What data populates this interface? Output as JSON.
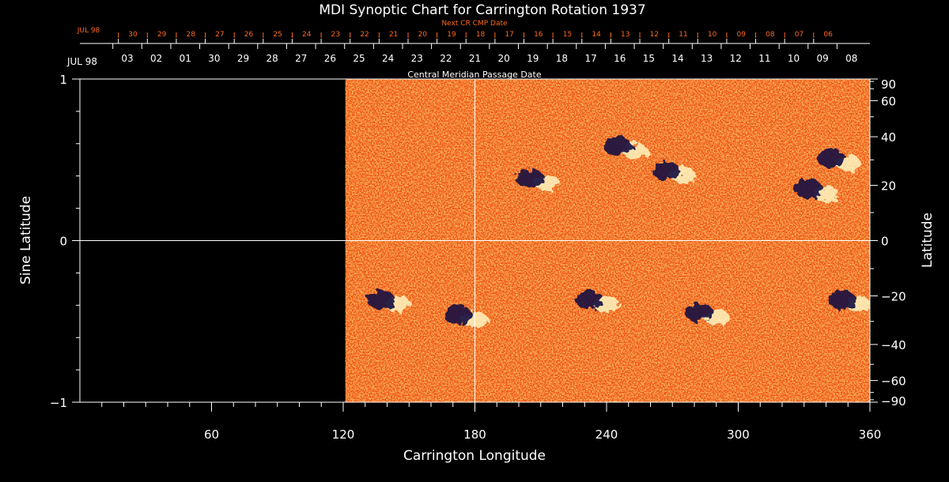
{
  "chart_data": {
    "type": "heatmap",
    "title": "MDI Synoptic Chart for Carrington Rotation 1937",
    "xlabel": "Carrington Longitude",
    "ylabel_left": "Sine Latitude",
    "ylabel_right": "Latitude",
    "xlim": [
      0,
      360
    ],
    "ylim": [
      -1,
      1
    ],
    "x_ticks": [
      60,
      120,
      180,
      240,
      300,
      360
    ],
    "x_minor_step": 10,
    "y_left_ticks": [
      {
        "value": 1,
        "label": "1"
      },
      {
        "value": 0,
        "label": "0"
      },
      {
        "value": -1,
        "label": "−1"
      }
    ],
    "y_left_minor_step": 0.2,
    "y_right_ticks": [
      90,
      60,
      40,
      20,
      0,
      -20,
      -40,
      -60,
      -90
    ],
    "y_right_labels": [
      "90",
      "60",
      "40",
      "20",
      "0",
      "−20",
      "−40",
      "−60",
      "−90"
    ],
    "data_coverage_start_longitude": 121,
    "crosshair": {
      "longitude": 180,
      "sine_latitude": 0
    },
    "cmp_axis": {
      "label": "Central Meridian Passage Date",
      "month_label": "JUL 98",
      "step_deg": 13.2,
      "dates": [
        "03",
        "02",
        "01",
        "30",
        "29",
        "28",
        "27",
        "26",
        "25",
        "24",
        "23",
        "22",
        "21",
        "20",
        "19",
        "18",
        "17",
        "16",
        "15",
        "14",
        "13",
        "12",
        "11",
        "10",
        "09",
        "08"
      ]
    },
    "next_cr_axis": {
      "label": "Next CR CMP Date",
      "month_label": "JUL 98",
      "dates": [
        "30",
        "29",
        "28",
        "27",
        "26",
        "25",
        "24",
        "23",
        "22",
        "21",
        "20",
        "19",
        "18",
        "17",
        "16",
        "15",
        "14",
        "13",
        "12",
        "11",
        "10",
        "09",
        "08",
        "07",
        "06"
      ]
    },
    "colormap": {
      "background": "#f05a14",
      "positive": "#fff4c0",
      "negative": "#140c40",
      "mid": "#ff8a3a"
    },
    "active_regions": [
      {
        "longitude": 208,
        "latitude": 22,
        "polarity_lead": "negative"
      },
      {
        "longitude": 248,
        "latitude": 35,
        "polarity_lead": "negative"
      },
      {
        "longitude": 270,
        "latitude": 25,
        "polarity_lead": "negative"
      },
      {
        "longitude": 345,
        "latitude": 30,
        "polarity_lead": "negative"
      },
      {
        "longitude": 335,
        "latitude": 18,
        "polarity_lead": "negative"
      },
      {
        "longitude": 140,
        "latitude": -22,
        "polarity_lead": "negative"
      },
      {
        "longitude": 175,
        "latitude": -28,
        "polarity_lead": "negative"
      },
      {
        "longitude": 235,
        "latitude": -22,
        "polarity_lead": "negative"
      },
      {
        "longitude": 285,
        "latitude": -27,
        "polarity_lead": "negative"
      },
      {
        "longitude": 350,
        "latitude": -22,
        "polarity_lead": "negative"
      }
    ]
  }
}
